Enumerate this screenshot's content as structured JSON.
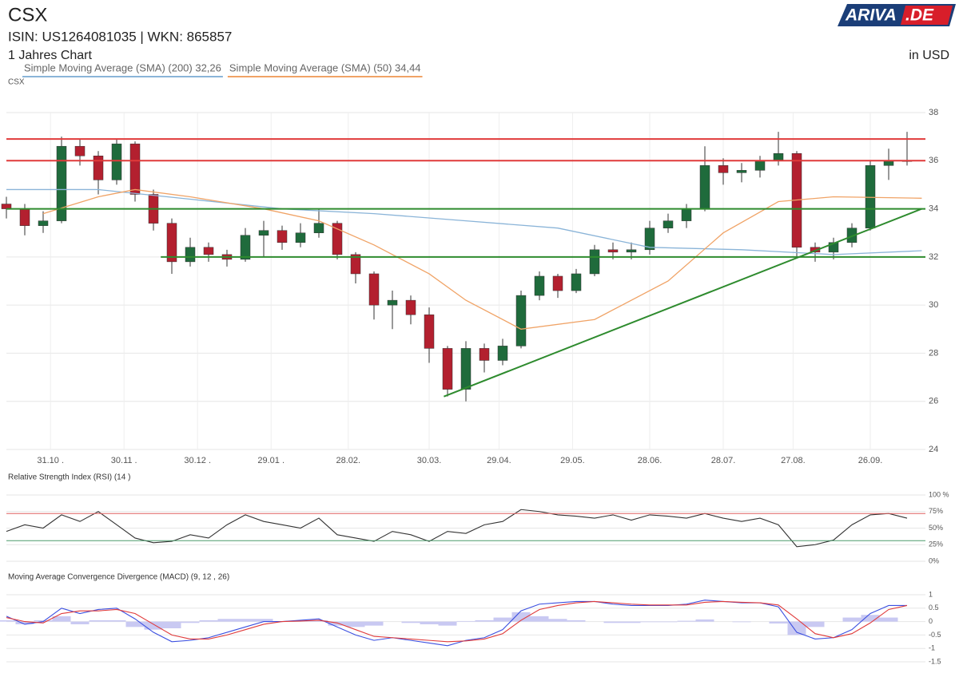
{
  "header": {
    "title": "CSX",
    "isin": "ISIN: US1264081035  | WKN: 865857",
    "period": "1 Jahres Chart",
    "currency": "in USD",
    "logo": [
      "ARIVA",
      ".DE"
    ]
  },
  "chart_data": [
    {
      "type": "candlestick",
      "label": "CSX",
      "x": [
        0,
        5,
        10,
        15,
        20,
        25,
        30,
        35,
        40,
        45,
        50,
        55,
        60,
        65,
        70,
        75,
        80,
        85,
        90,
        95,
        100,
        105,
        110,
        115,
        120,
        125,
        130,
        135,
        140,
        145,
        150,
        155,
        160,
        165,
        170,
        175,
        180,
        185,
        190,
        195,
        200,
        205,
        210,
        215,
        220,
        225,
        230,
        235,
        240,
        245
      ],
      "open": [
        34.2,
        34.0,
        33.3,
        33.5,
        36.6,
        36.2,
        35.2,
        36.7,
        34.6,
        33.4,
        31.8,
        32.4,
        32.1,
        31.9,
        32.9,
        33.1,
        32.6,
        33.0,
        33.4,
        32.1,
        31.3,
        30.0,
        30.2,
        29.6,
        28.2,
        26.5,
        28.2,
        27.7,
        28.3,
        30.4,
        31.2,
        30.6,
        31.3,
        32.3,
        32.2,
        32.3,
        33.2,
        33.5,
        34.0,
        35.8,
        35.5,
        35.6,
        36.0,
        36.3,
        32.4,
        32.2,
        32.6,
        33.2,
        35.8,
        36.0
      ],
      "high": [
        34.5,
        34.2,
        33.9,
        37.0,
        36.9,
        36.4,
        36.9,
        36.8,
        34.8,
        33.6,
        32.8,
        32.6,
        32.3,
        33.2,
        33.5,
        33.3,
        33.4,
        34.0,
        33.5,
        32.2,
        31.4,
        30.6,
        30.4,
        29.9,
        28.3,
        28.5,
        28.4,
        28.6,
        30.6,
        31.4,
        31.3,
        31.5,
        32.5,
        32.6,
        32.6,
        33.5,
        33.8,
        34.2,
        36.6,
        36.1,
        35.9,
        36.2,
        37.2,
        36.4,
        32.6,
        32.8,
        33.4,
        36.0,
        36.5,
        37.2
      ],
      "low": [
        33.6,
        32.9,
        33.0,
        33.4,
        35.8,
        34.6,
        35.0,
        34.3,
        33.1,
        31.3,
        31.6,
        31.8,
        31.6,
        31.8,
        32.0,
        32.3,
        32.4,
        32.8,
        31.9,
        30.9,
        29.4,
        29.0,
        29.2,
        27.6,
        26.2,
        26.0,
        27.2,
        27.5,
        28.2,
        30.2,
        30.3,
        30.5,
        31.2,
        31.9,
        31.9,
        32.1,
        33.0,
        33.2,
        33.9,
        35.0,
        35.1,
        35.3,
        35.8,
        32.0,
        31.8,
        31.9,
        32.4,
        33.1,
        35.2,
        35.8
      ],
      "close": [
        34.0,
        33.3,
        33.5,
        36.6,
        36.2,
        35.2,
        36.7,
        34.6,
        33.4,
        31.8,
        32.4,
        32.1,
        31.9,
        32.9,
        33.1,
        32.6,
        33.0,
        33.4,
        32.1,
        31.3,
        30.0,
        30.2,
        29.6,
        28.2,
        26.5,
        28.2,
        27.7,
        28.3,
        30.4,
        31.2,
        30.6,
        31.3,
        32.3,
        32.2,
        32.3,
        33.2,
        33.5,
        34.0,
        35.8,
        35.5,
        35.6,
        36.0,
        36.3,
        32.4,
        32.2,
        32.6,
        33.2,
        35.8,
        36.0,
        36.0
      ],
      "up_color": "#1f6b3c",
      "down_color": "#b3202f",
      "xlim": [
        0,
        250
      ],
      "ylim": [
        24,
        38
      ],
      "yticks": [
        24,
        26,
        28,
        30,
        32,
        34,
        36,
        38
      ],
      "xticks": [
        {
          "value": 12,
          "label": "31.10 ."
        },
        {
          "value": 32,
          "label": "30.11 ."
        },
        {
          "value": 52,
          "label": "30.12 ."
        },
        {
          "value": 72,
          "label": "29.01 ."
        },
        {
          "value": 93,
          "label": "28.02."
        },
        {
          "value": 115,
          "label": "30.03."
        },
        {
          "value": 134,
          "label": "29.04."
        },
        {
          "value": 154,
          "label": "29.05."
        },
        {
          "value": 175,
          "label": "28.06."
        },
        {
          "value": 195,
          "label": "28.07."
        },
        {
          "value": 214,
          "label": "27.08."
        },
        {
          "value": 235,
          "label": "26.09."
        }
      ],
      "grid": true,
      "series": [
        {
          "name": "Simple Moving Average (SMA) (200) 32,26",
          "color": "#8ab4d8",
          "x": [
            0,
            25,
            50,
            75,
            100,
            125,
            150,
            175,
            200,
            225,
            249
          ],
          "values": [
            34.8,
            34.8,
            34.4,
            34.0,
            33.8,
            33.5,
            33.2,
            32.4,
            32.3,
            32.1,
            32.26
          ]
        },
        {
          "name": "Simple Moving Average (SMA) (50) 34,44",
          "color": "#f0a366",
          "x": [
            10,
            25,
            35,
            50,
            70,
            85,
            100,
            115,
            125,
            140,
            160,
            180,
            195,
            210,
            225,
            249
          ],
          "values": [
            33.8,
            34.5,
            34.8,
            34.5,
            34.0,
            33.5,
            32.5,
            31.3,
            30.2,
            29.0,
            29.4,
            31.0,
            33.0,
            34.3,
            34.5,
            34.44
          ]
        }
      ],
      "hlines": [
        {
          "y": 36.9,
          "color": "#e03a3a"
        },
        {
          "y": 36.0,
          "color": "#e03a3a"
        },
        {
          "y": 34.0,
          "color": "#2e8b2e"
        },
        {
          "y": 32.0,
          "x0": 42,
          "color": "#2e8b2e"
        }
      ],
      "trendline": {
        "x": [
          119,
          249
        ],
        "y": [
          26.2,
          34.0
        ],
        "color": "#2e8b2e"
      }
    },
    {
      "type": "line",
      "title": "Relative Strength Index (RSI) (14 )",
      "x": [
        0,
        5,
        10,
        15,
        20,
        25,
        30,
        35,
        40,
        45,
        50,
        55,
        60,
        65,
        70,
        75,
        80,
        85,
        90,
        95,
        100,
        105,
        110,
        115,
        120,
        125,
        130,
        135,
        140,
        145,
        150,
        155,
        160,
        165,
        170,
        175,
        180,
        185,
        190,
        195,
        200,
        205,
        210,
        215,
        220,
        225,
        230,
        235,
        240,
        245
      ],
      "xlim": [
        0,
        250
      ],
      "ylim": [
        0,
        100
      ],
      "yticks": [
        {
          "value": 0,
          "label": "0%"
        },
        {
          "value": 25,
          "label": "25%"
        },
        {
          "value": 50,
          "label": "50%"
        },
        {
          "value": 75,
          "label": "75%"
        },
        {
          "value": 100,
          "label": "100 %"
        }
      ],
      "grid": true,
      "series": [
        {
          "color": "#333333",
          "values": [
            45,
            55,
            50,
            70,
            60,
            75,
            55,
            35,
            28,
            30,
            40,
            35,
            55,
            70,
            60,
            55,
            50,
            65,
            40,
            35,
            30,
            45,
            40,
            30,
            45,
            42,
            55,
            60,
            78,
            75,
            70,
            68,
            65,
            70,
            62,
            70,
            68,
            65,
            72,
            65,
            60,
            65,
            55,
            22,
            25,
            32,
            55,
            70,
            72,
            65
          ]
        }
      ],
      "hlines": [
        {
          "y": 72,
          "color": "#e06060"
        },
        {
          "y": 31,
          "color": "#4a9a6a"
        }
      ]
    },
    {
      "type": "macd",
      "title": "Moving Average Convergence Divergence (MACD) (9, 12 , 26)",
      "x": [
        0,
        5,
        10,
        15,
        20,
        25,
        30,
        35,
        40,
        45,
        50,
        55,
        60,
        65,
        70,
        75,
        80,
        85,
        90,
        95,
        100,
        105,
        110,
        115,
        120,
        125,
        130,
        135,
        140,
        145,
        150,
        155,
        160,
        165,
        170,
        175,
        180,
        185,
        190,
        195,
        200,
        205,
        210,
        215,
        220,
        225,
        230,
        235,
        240,
        245
      ],
      "xlim": [
        0,
        250
      ],
      "ylim": [
        -1.5,
        1
      ],
      "yticks": [
        -1.5,
        -1,
        -0.5,
        0,
        0.5,
        1
      ],
      "grid": true,
      "histogram": {
        "color": "#c9c9f2",
        "values": [
          0.05,
          -0.1,
          0.05,
          0.2,
          -0.1,
          0.05,
          0.05,
          -0.2,
          -0.3,
          -0.25,
          -0.05,
          0.05,
          0.1,
          0.1,
          0.1,
          0,
          0.03,
          0.05,
          -0.15,
          -0.2,
          -0.15,
          0,
          -0.05,
          -0.1,
          -0.15,
          0.02,
          0.05,
          0.15,
          0.35,
          0.2,
          0.1,
          0.05,
          0,
          -0.05,
          -0.05,
          -0.02,
          -0.02,
          0.03,
          0.08,
          0,
          -0.02,
          0,
          -0.07,
          -0.5,
          -0.2,
          0,
          0.15,
          0.25,
          0.15,
          0
        ]
      },
      "series": [
        {
          "color": "#3b4fe0",
          "values": [
            0.2,
            -0.1,
            0,
            0.5,
            0.3,
            0.45,
            0.5,
            0.1,
            -0.4,
            -0.75,
            -0.7,
            -0.6,
            -0.4,
            -0.2,
            0,
            0,
            0.05,
            0.1,
            -0.2,
            -0.5,
            -0.7,
            -0.6,
            -0.7,
            -0.8,
            -0.9,
            -0.7,
            -0.6,
            -0.3,
            0.4,
            0.65,
            0.7,
            0.75,
            0.75,
            0.65,
            0.6,
            0.6,
            0.6,
            0.65,
            0.8,
            0.75,
            0.7,
            0.7,
            0.55,
            -0.4,
            -0.65,
            -0.6,
            -0.3,
            0.3,
            0.6,
            0.6
          ]
        },
        {
          "color": "#e03a3a",
          "values": [
            0.15,
            0,
            -0.05,
            0.3,
            0.4,
            0.4,
            0.45,
            0.3,
            -0.1,
            -0.5,
            -0.65,
            -0.65,
            -0.5,
            -0.3,
            -0.1,
            0,
            0.02,
            0.05,
            -0.05,
            -0.3,
            -0.55,
            -0.6,
            -0.65,
            -0.7,
            -0.75,
            -0.72,
            -0.65,
            -0.45,
            0.05,
            0.45,
            0.6,
            0.7,
            0.75,
            0.7,
            0.65,
            0.62,
            0.62,
            0.62,
            0.72,
            0.75,
            0.72,
            0.7,
            0.62,
            0.1,
            -0.45,
            -0.6,
            -0.45,
            -0.05,
            0.45,
            0.6
          ]
        }
      ]
    }
  ]
}
